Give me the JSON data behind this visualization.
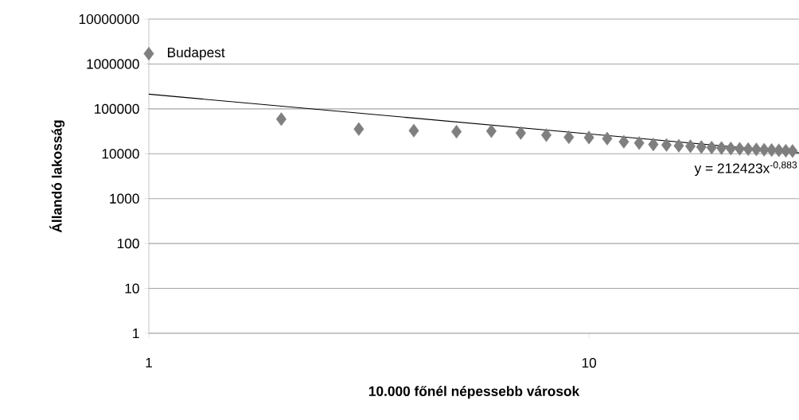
{
  "chart_data": {
    "type": "scatter",
    "xlabel": "10.000 főnél népessebb városok",
    "ylabel": "Állandó lakosság",
    "log": "xy",
    "grid": "y",
    "marker": "diamond",
    "xlim": [
      1,
      30
    ],
    "xticks": [
      1,
      10
    ],
    "ylim": [
      1,
      10000000
    ],
    "yticks": [
      1,
      10,
      100,
      1000,
      10000,
      100000,
      1000000,
      10000000
    ],
    "series": [
      {
        "color": "#7f7f7f",
        "x": [
          1,
          2,
          3,
          4,
          5,
          6,
          7,
          8,
          9,
          10,
          11,
          12,
          13,
          14,
          15,
          16,
          17,
          18,
          19,
          20,
          21,
          22,
          23,
          24,
          25,
          26,
          27,
          28,
          29
        ],
        "values": [
          1700000,
          59000,
          35500,
          32800,
          31000,
          31900,
          29000,
          26000,
          23300,
          23000,
          21800,
          18500,
          17300,
          16100,
          15700,
          15100,
          14700,
          14100,
          13700,
          13400,
          13100,
          12900,
          12700,
          12500,
          12300,
          12100,
          11900,
          11700,
          11500
        ]
      },
      {
        "type": "line",
        "color": "#000000",
        "x": [
          1,
          30
        ],
        "values": [
          212423,
          10500
        ],
        "line_style": "solid",
        "marker": "none"
      }
    ],
    "annotations": [
      {
        "text": "Budapest",
        "x": 1,
        "y": 1700000
      },
      "y = 212423x$^{-0,883}$"
    ]
  }
}
